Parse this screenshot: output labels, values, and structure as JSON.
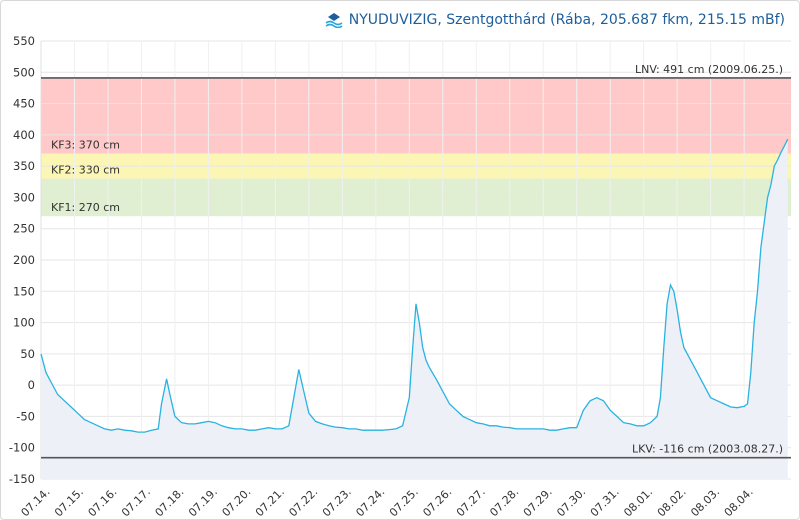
{
  "header": {
    "logo_icon": "nyuduvizig-logo-icon",
    "title": "NYUDUVIZIG, Szentgotthárd (Rába, 205.687 fkm, 215.15 mBf)"
  },
  "chart_data": {
    "type": "area",
    "title": "NYUDUVIZIG, Szentgotthárd (Rába, 205.687 fkm, 215.15 mBf)",
    "ylim": [
      -150,
      550
    ],
    "ytick_step": 50,
    "grid": true,
    "x_unit": "days",
    "xlim": [
      0,
      22.4
    ],
    "x_tick_labels": [
      "07.14.",
      "07.15.",
      "07.16.",
      "07.17.",
      "07.18.",
      "07.19.",
      "07.20.",
      "07.21.",
      "07.22.",
      "07.23.",
      "07.24.",
      "07.25.",
      "07.26.",
      "07.27.",
      "07.28.",
      "07.29.",
      "07.30.",
      "07.31.",
      "08.01.",
      "08.02.",
      "08.03.",
      "08.04."
    ],
    "bands": [
      {
        "from": 370,
        "to": 491,
        "color": "#ffc9c9",
        "label": "KF3: 370 cm"
      },
      {
        "from": 330,
        "to": 370,
        "color": "#fcf6b4",
        "label": "KF2: 330 cm"
      },
      {
        "from": 270,
        "to": 330,
        "color": "#e0efd2",
        "label": "KF1: 270 cm"
      }
    ],
    "reference_lines": [
      {
        "value": 491,
        "label": "LNV: 491 cm (2009.06.25.)",
        "color": "#555555"
      },
      {
        "value": -116,
        "label": "LKV: -116 cm (2003.08.27.)",
        "color": "#555555"
      }
    ],
    "series": [
      {
        "color": "#29b3e0",
        "fill": "#eef0f7",
        "x": [
          0.0,
          0.15,
          0.3,
          0.5,
          0.7,
          0.9,
          1.1,
          1.3,
          1.5,
          1.7,
          1.9,
          2.1,
          2.3,
          2.5,
          2.7,
          2.9,
          3.1,
          3.3,
          3.5,
          3.6,
          3.75,
          3.85,
          4.0,
          4.2,
          4.4,
          4.6,
          4.8,
          5.0,
          5.2,
          5.4,
          5.6,
          5.8,
          6.0,
          6.2,
          6.4,
          6.6,
          6.8,
          7.0,
          7.2,
          7.4,
          7.55,
          7.7,
          7.85,
          8.0,
          8.2,
          8.4,
          8.6,
          8.8,
          9.0,
          9.2,
          9.4,
          9.6,
          9.8,
          10.0,
          10.2,
          10.4,
          10.6,
          10.8,
          11.0,
          11.1,
          11.2,
          11.3,
          11.4,
          11.5,
          11.6,
          11.8,
          12.0,
          12.2,
          12.4,
          12.6,
          12.8,
          13.0,
          13.2,
          13.4,
          13.6,
          13.8,
          14.0,
          14.2,
          14.4,
          14.6,
          14.8,
          15.0,
          15.2,
          15.4,
          15.6,
          15.8,
          16.0,
          16.2,
          16.4,
          16.6,
          16.8,
          17.0,
          17.2,
          17.4,
          17.6,
          17.8,
          18.0,
          18.2,
          18.4,
          18.5,
          18.6,
          18.7,
          18.8,
          18.9,
          19.0,
          19.1,
          19.2,
          19.4,
          19.6,
          19.8,
          20.0,
          20.2,
          20.4,
          20.6,
          20.8,
          21.0,
          21.1,
          21.2,
          21.3,
          21.4,
          21.5,
          21.6,
          21.7,
          21.8,
          21.9,
          22.0,
          22.1,
          22.2,
          22.3
        ],
        "y": [
          50,
          20,
          5,
          -15,
          -25,
          -35,
          -45,
          -55,
          -60,
          -65,
          -70,
          -72,
          -70,
          -72,
          -73,
          -75,
          -75,
          -72,
          -70,
          -30,
          10,
          -15,
          -50,
          -60,
          -62,
          -62,
          -60,
          -58,
          -60,
          -65,
          -68,
          -70,
          -70,
          -72,
          -72,
          -70,
          -68,
          -70,
          -70,
          -65,
          -20,
          25,
          -10,
          -45,
          -58,
          -62,
          -65,
          -67,
          -68,
          -70,
          -70,
          -72,
          -72,
          -72,
          -72,
          -71,
          -70,
          -65,
          -20,
          60,
          130,
          100,
          60,
          40,
          28,
          10,
          -10,
          -30,
          -40,
          -50,
          -55,
          -60,
          -62,
          -65,
          -65,
          -67,
          -68,
          -70,
          -70,
          -70,
          -70,
          -70,
          -72,
          -72,
          -70,
          -68,
          -68,
          -40,
          -25,
          -20,
          -25,
          -40,
          -50,
          -60,
          -62,
          -65,
          -65,
          -60,
          -50,
          -20,
          60,
          130,
          160,
          150,
          120,
          85,
          60,
          40,
          20,
          0,
          -20,
          -25,
          -30,
          -35,
          -36,
          -34,
          -30,
          20,
          100,
          150,
          220,
          260,
          300,
          320,
          350,
          360,
          372,
          382,
          393
        ]
      }
    ]
  }
}
